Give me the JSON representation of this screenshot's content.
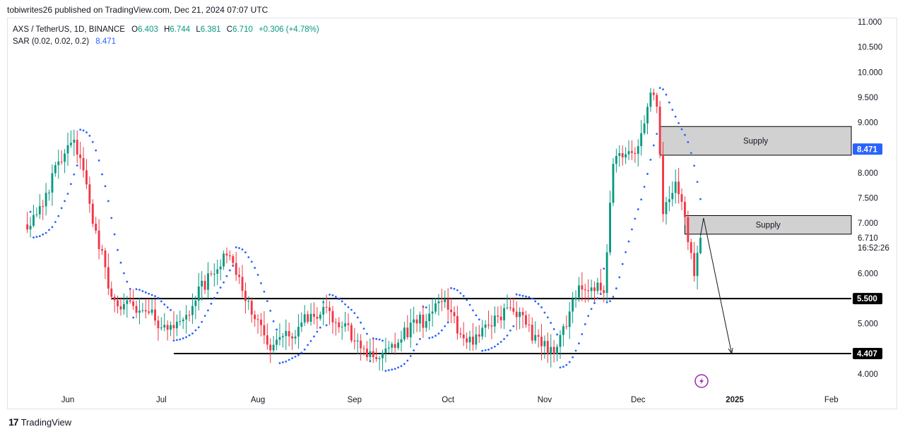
{
  "header": {
    "published": "tobiwrites26 published on TradingView.com, Dec 21, 2024 07:07 UTC"
  },
  "legend": {
    "symbol": "AXS / TetherUS, 1D, BINANCE",
    "o_label": "O",
    "o_value": "6.403",
    "h_label": "H",
    "h_value": "6.744",
    "l_label": "L",
    "l_value": "6.381",
    "c_label": "C",
    "c_value": "6.710",
    "change": "+0.306 (+4.78%)",
    "indicator": "SAR (0.02, 0.02, 0.2)",
    "indicator_value": "8.471"
  },
  "footer": {
    "logo_mark": "17",
    "brand": "TradingView"
  },
  "colors": {
    "up": "#089981",
    "down": "#f23645",
    "sar": "#2962ff",
    "zone_fill": "#d1d1d1",
    "level_line": "#000000"
  },
  "chart_data": {
    "type": "candlestick",
    "symbol": "AXS / TetherUS",
    "timeframe": "1D",
    "exchange": "BINANCE",
    "x_ticks": [
      "Jun",
      "Jul",
      "Aug",
      "Sep",
      "Oct",
      "Nov",
      "Dec",
      "2025",
      "Feb"
    ],
    "y_ticks": [
      "4.000",
      "5.000",
      "5.500",
      "6.000",
      "6.710",
      "7.000",
      "7.500",
      "8.000",
      "8.471",
      "9.000",
      "9.500",
      "10.000",
      "10.500",
      "11.000"
    ],
    "y_range": [
      3.7,
      11.1
    ],
    "last_price": "6.710",
    "countdown": "16:52:26",
    "levels": [
      {
        "value": 5.5,
        "label": "5.500",
        "start": "Jun 15"
      },
      {
        "value": 4.407,
        "label": "4.407",
        "start": "Jul 05"
      }
    ],
    "zones": [
      {
        "label": "Supply",
        "low": 8.35,
        "high": 8.92,
        "start": "Dec 08"
      },
      {
        "label": "Supply",
        "low": 6.78,
        "high": 7.15,
        "start": "Dec 16"
      }
    ],
    "sar_value": "8.471",
    "anchor_points": [
      {
        "date": "May 19",
        "price": 6.9
      },
      {
        "date": "Jun 03",
        "price": 8.7
      },
      {
        "date": "Jun 15",
        "price": 5.5
      },
      {
        "date": "Jul 05",
        "price": 4.9
      },
      {
        "date": "Jul 22",
        "price": 6.4
      },
      {
        "date": "Aug 05",
        "price": 4.5
      },
      {
        "date": "Aug 22",
        "price": 5.3
      },
      {
        "date": "Sep 08",
        "price": 4.3
      },
      {
        "date": "Sep 30",
        "price": 5.45
      },
      {
        "date": "Oct 07",
        "price": 4.6
      },
      {
        "date": "Oct 20",
        "price": 5.3
      },
      {
        "date": "Nov 04",
        "price": 4.4
      },
      {
        "date": "Nov 12",
        "price": 5.8
      },
      {
        "date": "Nov 20",
        "price": 5.6
      },
      {
        "date": "Nov 23",
        "price": 8.2
      },
      {
        "date": "Nov 30",
        "price": 8.4
      },
      {
        "date": "Dec 05",
        "price": 9.6
      },
      {
        "date": "Dec 07",
        "price": 9.3
      },
      {
        "date": "Dec 09",
        "price": 7.2
      },
      {
        "date": "Dec 13",
        "price": 7.8
      },
      {
        "date": "Dec 16",
        "price": 7.1
      },
      {
        "date": "Dec 19",
        "price": 5.9
      },
      {
        "date": "Dec 21",
        "price": 6.71
      }
    ],
    "projection": [
      {
        "date": "Dec 21",
        "price": 6.75
      },
      {
        "date": "Dec 22",
        "price": 7.1
      },
      {
        "date": "Dec 31",
        "price": 4.41
      }
    ]
  }
}
